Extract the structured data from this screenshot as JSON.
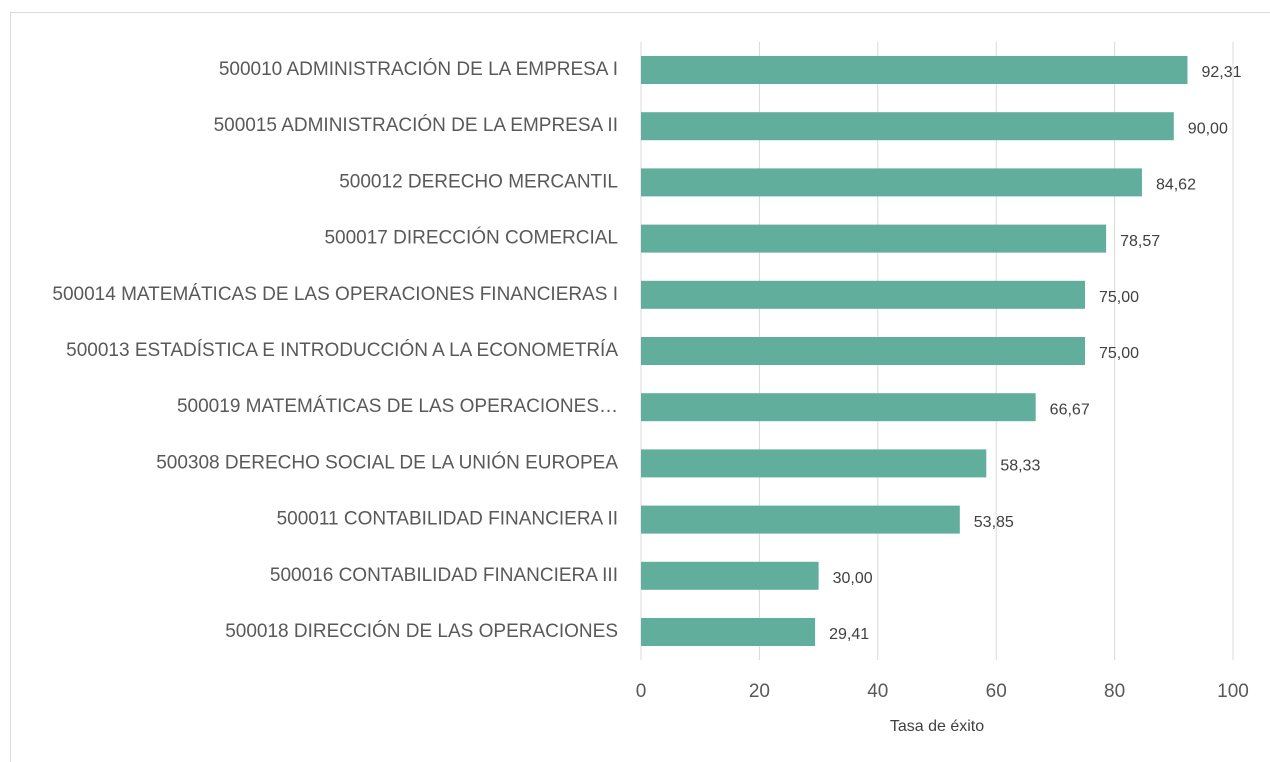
{
  "chart_data": {
    "type": "bar",
    "orientation": "horizontal",
    "x_label": "Tasa de éxito",
    "categories": [
      "500010 ADMINISTRACIÓN DE LA EMPRESA I",
      "500015 ADMINISTRACIÓN DE LA EMPRESA II",
      "500012 DERECHO MERCANTIL",
      "500017 DIRECCIÓN COMERCIAL",
      "500014 MATEMÁTICAS DE LAS OPERACIONES FINANCIERAS I",
      "500013 ESTADÍSTICA E INTRODUCCIÓN A LA ECONOMETRÍA",
      "500019 MATEMÁTICAS DE LAS OPERACIONES…",
      "500308 DERECHO SOCIAL DE LA UNIÓN EUROPEA",
      "500011 CONTABILIDAD FINANCIERA II",
      "500016 CONTABILIDAD FINANCIERA III",
      "500018 DIRECCIÓN DE LAS OPERACIONES"
    ],
    "values": [
      92.31,
      90.0,
      84.62,
      78.57,
      75.0,
      75.0,
      66.67,
      58.33,
      53.85,
      30.0,
      29.41
    ],
    "value_labels": [
      "92,31",
      "90,00",
      "84,62",
      "78,57",
      "75,00",
      "75,00",
      "66,67",
      "58,33",
      "53,85",
      "30,00",
      "29,41"
    ],
    "color": "#62ae9c",
    "xlim": [
      0,
      100
    ],
    "xticks": [
      0,
      20,
      40,
      60,
      80,
      100
    ],
    "grid": true
  }
}
